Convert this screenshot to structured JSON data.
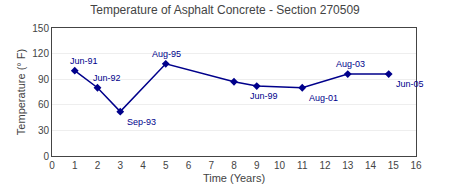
{
  "chart_data": {
    "type": "line",
    "title": "Temperature of Asphalt Concrete - Section 270509",
    "xlabel": "Time (Years)",
    "ylabel": "Temperature (° F)",
    "x": [
      1,
      2,
      3,
      5,
      8,
      9,
      11,
      13,
      14.8
    ],
    "values": [
      100,
      80,
      52,
      108,
      87,
      82,
      80,
      96,
      96
    ],
    "annotations": [
      "Jun-91",
      "Jun-92",
      "Sep-93",
      "Aug-95",
      null,
      "Jun-99",
      "Aug-01",
      "Aug-03",
      "Jun-05"
    ],
    "xlim": [
      0,
      16
    ],
    "ylim": [
      0,
      150
    ],
    "xticks": [
      0,
      1,
      2,
      3,
      4,
      5,
      6,
      7,
      8,
      9,
      10,
      11,
      12,
      13,
      14,
      15,
      16
    ],
    "yticks": [
      0,
      30,
      60,
      90,
      120,
      150
    ],
    "grid": "y",
    "color": "#00008B",
    "marker": "diamond"
  }
}
